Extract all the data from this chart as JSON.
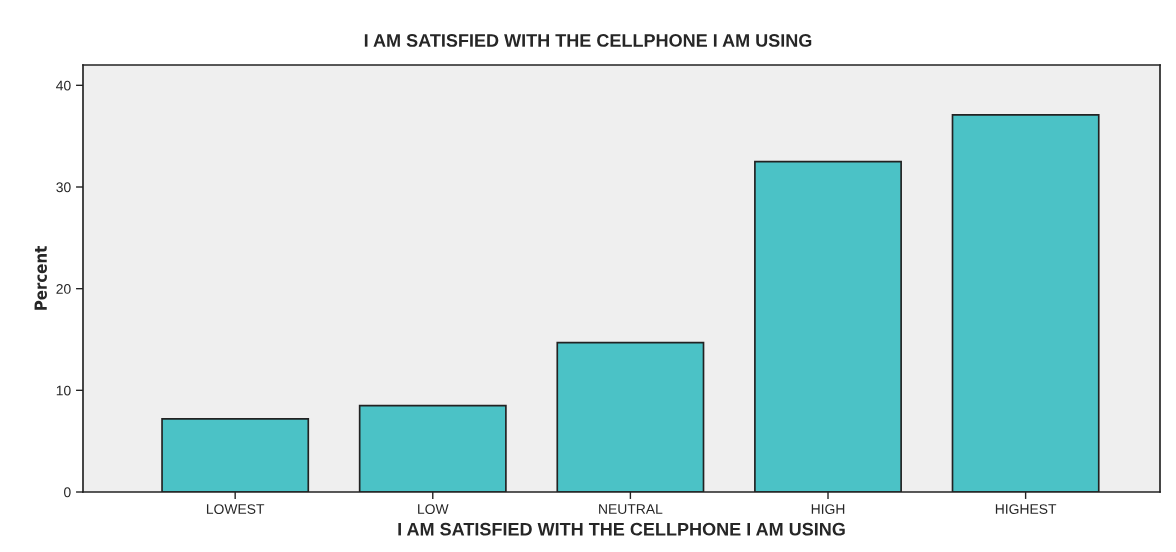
{
  "chart_data": {
    "type": "bar",
    "title": "I AM SATISFIED WITH THE CELLPHONE I AM USING",
    "xlabel": "I AM SATISFIED WITH THE CELLPHONE I AM USING",
    "ylabel": "Percent",
    "categories": [
      "LOWEST",
      "LOW",
      "NEUTRAL",
      "HIGH",
      "HIGHEST"
    ],
    "values": [
      7.2,
      8.5,
      14.7,
      32.5,
      37.1
    ],
    "color": "#4bc2c6",
    "ylim": [
      0,
      42
    ],
    "yticks": [
      0,
      10,
      20,
      30,
      40
    ],
    "grid": false,
    "legend": false
  }
}
